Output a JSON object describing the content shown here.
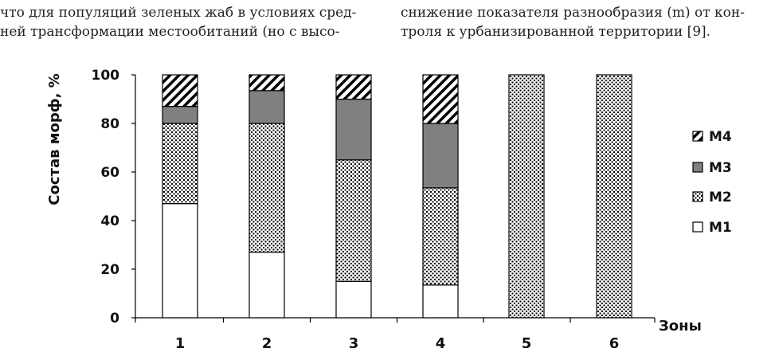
{
  "page_text": {
    "left_line1": "что для популяций зеленых жаб в условиях сред-",
    "left_line2": "ней трансформации местообитаний (но с высо-",
    "right_line1": "снижение показателя разнообразия (m) от кон-",
    "right_line2": "троля к урбанизированной территории [9]."
  },
  "chart_data": {
    "type": "bar",
    "stacked": true,
    "title": "",
    "xlabel": "Зоны",
    "ylabel": "Состав морф, %",
    "ylim": [
      0,
      100
    ],
    "yticks": [
      "0",
      "20",
      "40",
      "60",
      "80",
      "100"
    ],
    "categories": [
      "1",
      "2",
      "3",
      "4",
      "5",
      "6"
    ],
    "series": [
      {
        "name": "М1",
        "values": [
          47,
          27,
          15,
          13.5,
          0,
          0
        ],
        "pattern": "white"
      },
      {
        "name": "М2",
        "values": [
          33,
          53,
          50,
          40,
          100,
          100
        ],
        "pattern": "dots"
      },
      {
        "name": "М3",
        "values": [
          7,
          13.5,
          25,
          26.5,
          0,
          0
        ],
        "pattern": "gray"
      },
      {
        "name": "М4",
        "values": [
          13,
          6.5,
          10,
          20,
          0,
          0
        ],
        "pattern": "hatch"
      }
    ],
    "legend": {
      "position": "right",
      "order": [
        "М4",
        "М3",
        "М2",
        "М1"
      ]
    },
    "grid": false,
    "colors": {
      "M3_fill": "#808080",
      "stroke": "#000000",
      "background": "#ffffff"
    }
  }
}
